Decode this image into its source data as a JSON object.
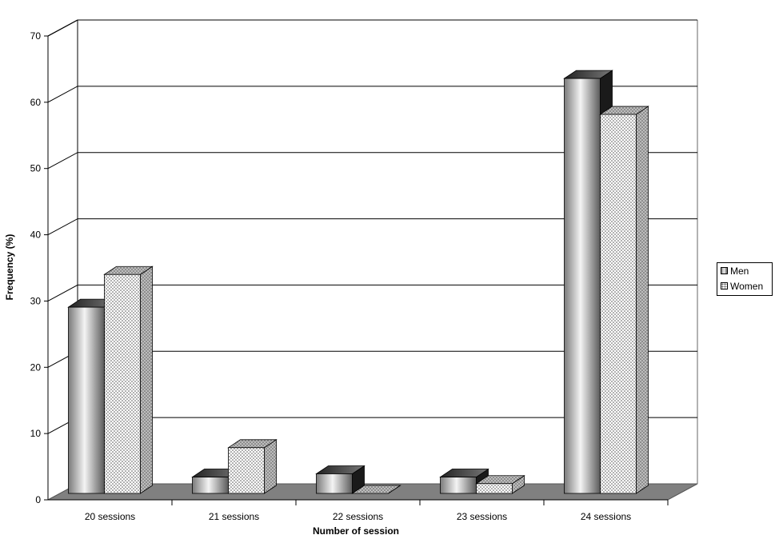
{
  "chart_data": {
    "type": "bar",
    "title": "",
    "xlabel": "Number of session",
    "ylabel": "Frequency (%)",
    "ylim": [
      0,
      70
    ],
    "yticks": [
      "0",
      "10",
      "20",
      "30",
      "40",
      "50",
      "60",
      "70"
    ],
    "grid": true,
    "legend_position": "right",
    "categories": [
      "20 sessions",
      "21 sessions",
      "22 sessions",
      "23 sessions",
      "24 sessions"
    ],
    "series": [
      {
        "name": "Men",
        "values": [
          28.5,
          2.5,
          3.0,
          2.5,
          63.5
        ]
      },
      {
        "name": "Women",
        "values": [
          33.5,
          7.0,
          0.0,
          1.5,
          58.0
        ]
      }
    ]
  }
}
